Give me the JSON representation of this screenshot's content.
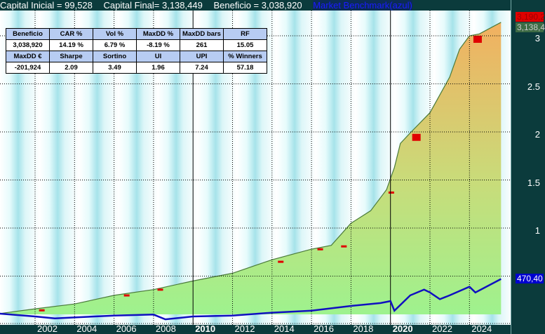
{
  "header": {
    "capital_inicial": "Capital Inicial = 99,528",
    "capital_final": "Capital Final= 3,138,449",
    "beneficio": "Beneficio = 3,038,920",
    "benchmark_label": "Market Benchmark(azul)"
  },
  "stats": {
    "row1_headers": [
      "Beneficio",
      "CAR %",
      "Vol %",
      "MaxDD %",
      "MaxDD bars",
      "RF"
    ],
    "row1_values": [
      "3,038,920",
      "14.19 %",
      "6.79 %",
      "-8.19 %",
      "261",
      "15.05"
    ],
    "row2_headers": [
      "MaxDD €",
      "Sharpe",
      "Sortino",
      "UI",
      "UPI",
      "% Winners"
    ],
    "row2_values": [
      "-201,924",
      "2.09",
      "3.49",
      "1.96",
      "7.24",
      "57.18"
    ]
  },
  "tags": {
    "equity_high": "3,190,2",
    "equity_last": "3,138,4",
    "benchmark_last": "470,40"
  },
  "chart_data": {
    "type": "area",
    "ylim": [
      0,
      3.2
    ],
    "yticks": [
      {
        "v": 3,
        "label": "3"
      },
      {
        "v": 2.5,
        "label": "2.5"
      },
      {
        "v": 2,
        "label": "2"
      },
      {
        "v": 1.5,
        "label": "1.5"
      },
      {
        "v": 1,
        "label": "1"
      }
    ],
    "xlim": [
      2000.2,
      2026.0
    ],
    "xticks": [
      "2002",
      "2004",
      "2006",
      "2008",
      "2010",
      "2012",
      "2014",
      "2016",
      "2018",
      "2020",
      "2022",
      "2024"
    ],
    "grid": true,
    "colors": {
      "equity_low": "#9ef28e",
      "equity_high": "#f2b060",
      "drawdown": "#e00000",
      "benchmark": "#1010c0",
      "equity_line": "#4a7a3a"
    },
    "series": [
      {
        "role": "equity",
        "x": [
          2000.2,
          2002,
          2004,
          2006,
          2008,
          2010,
          2012,
          2014,
          2016,
          2017,
          2018,
          2019,
          2019.8,
          2020.2,
          2020.5,
          2021,
          2022,
          2023,
          2023.5,
          2024,
          2024.5,
          2025.6
        ],
        "y": [
          0.11,
          0.16,
          0.21,
          0.3,
          0.36,
          0.45,
          0.53,
          0.67,
          0.78,
          0.82,
          1.05,
          1.18,
          1.4,
          1.63,
          1.88,
          1.99,
          2.2,
          2.57,
          2.86,
          3.0,
          3.02,
          3.14
        ]
      },
      {
        "role": "benchmark",
        "x": [
          2000.2,
          2002,
          2003,
          2004,
          2006,
          2008,
          2008.6,
          2010,
          2012,
          2014,
          2016,
          2018,
          2019.5,
          2020,
          2020.2,
          2021,
          2021.7,
          2022,
          2022.5,
          2023,
          2024,
          2024.3,
          2025.6
        ],
        "y": [
          0.11,
          0.08,
          0.06,
          0.07,
          0.09,
          0.1,
          0.05,
          0.08,
          0.09,
          0.12,
          0.14,
          0.19,
          0.22,
          0.24,
          0.14,
          0.3,
          0.36,
          0.33,
          0.26,
          0.3,
          0.39,
          0.33,
          0.47
        ]
      }
    ]
  }
}
